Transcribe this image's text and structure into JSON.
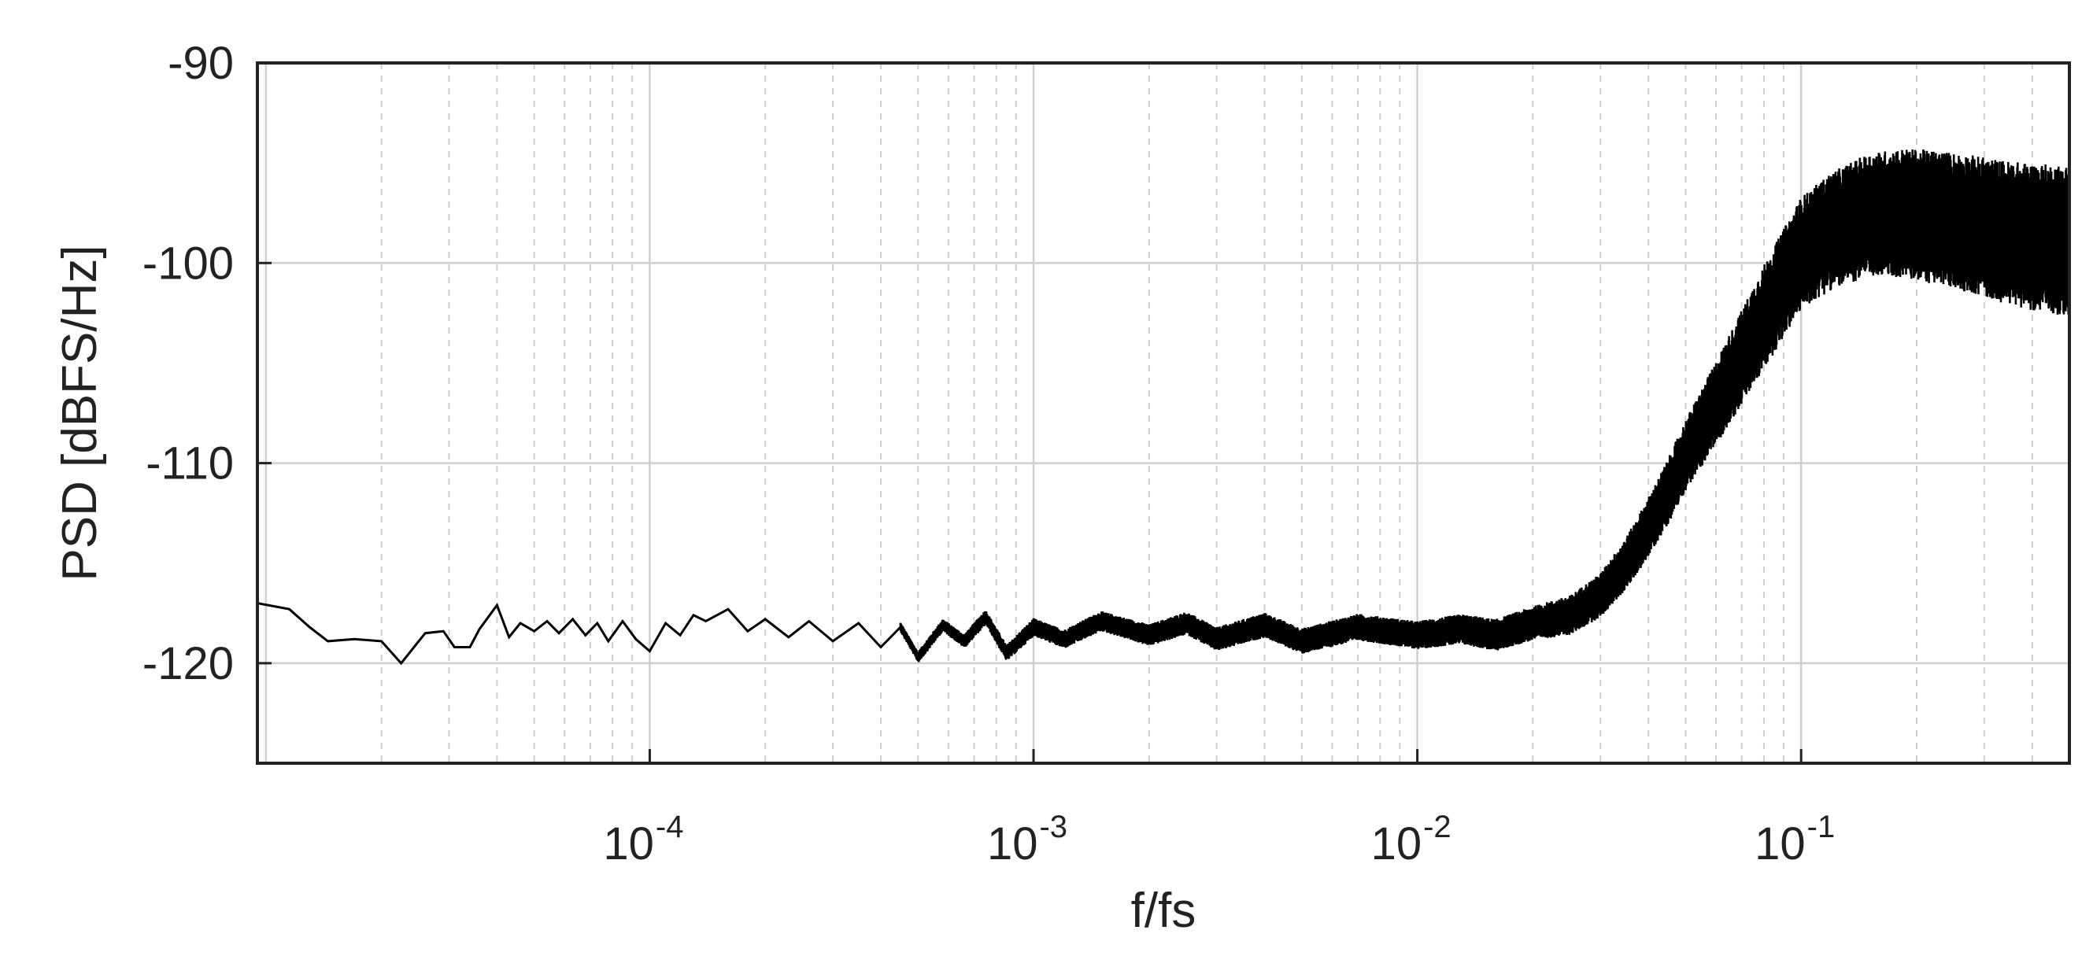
{
  "chart_data": {
    "type": "line",
    "xscale": "log",
    "xlim": [
      9.5e-06,
      0.5
    ],
    "ylim": [
      -125,
      -90
    ],
    "xlabel": "f/fs",
    "ylabel": "PSD [dBFS/Hz]",
    "grid": true,
    "xticks": [
      {
        "mantissa": "10",
        "exponent": "-4",
        "value": 0.0001
      },
      {
        "mantissa": "10",
        "exponent": "-3",
        "value": 0.001
      },
      {
        "mantissa": "10",
        "exponent": "-2",
        "value": 0.01
      },
      {
        "mantissa": "10",
        "exponent": "-1",
        "value": 0.1
      }
    ],
    "yticks": [
      {
        "label": "-90",
        "value": -90
      },
      {
        "label": "-100",
        "value": -100
      },
      {
        "label": "-110",
        "value": -110
      },
      {
        "label": "-120",
        "value": -120
      }
    ],
    "series": [
      {
        "color": "#000000",
        "points": [
          [
            9.5e-06,
            -117.0
          ],
          [
            1.15e-05,
            -117.3
          ],
          [
            1.3e-05,
            -118.2
          ],
          [
            1.45e-05,
            -118.9
          ],
          [
            1.7e-05,
            -118.8
          ],
          [
            2e-05,
            -118.9
          ],
          [
            2.25e-05,
            -120.0
          ],
          [
            2.6e-05,
            -118.5
          ],
          [
            2.9e-05,
            -118.4
          ],
          [
            3.1e-05,
            -119.2
          ],
          [
            3.4e-05,
            -119.2
          ],
          [
            3.6e-05,
            -118.3
          ],
          [
            4e-05,
            -117.1
          ],
          [
            4.3e-05,
            -118.7
          ],
          [
            4.6e-05,
            -118.0
          ],
          [
            5e-05,
            -118.4
          ],
          [
            5.4e-05,
            -117.9
          ],
          [
            5.8e-05,
            -118.5
          ],
          [
            6.3e-05,
            -117.8
          ],
          [
            6.8e-05,
            -118.6
          ],
          [
            7.3e-05,
            -118.0
          ],
          [
            7.8e-05,
            -118.9
          ],
          [
            8.5e-05,
            -117.9
          ],
          [
            9.2e-05,
            -118.8
          ],
          [
            0.0001,
            -119.4
          ],
          [
            0.00011,
            -118.0
          ],
          [
            0.00012,
            -118.6
          ],
          [
            0.00013,
            -117.6
          ],
          [
            0.00014,
            -117.9
          ],
          [
            0.00016,
            -117.3
          ],
          [
            0.00018,
            -118.4
          ],
          [
            0.0002,
            -117.8
          ],
          [
            0.00023,
            -118.7
          ],
          [
            0.00026,
            -117.9
          ],
          [
            0.0003,
            -118.9
          ],
          [
            0.00035,
            -118.0
          ],
          [
            0.0004,
            -119.2
          ],
          [
            0.00045,
            -118.2
          ],
          [
            0.0005,
            -119.7
          ],
          [
            0.00058,
            -118.1
          ],
          [
            0.00066,
            -118.9
          ],
          [
            0.00075,
            -117.7
          ],
          [
            0.00085,
            -119.5
          ],
          [
            0.001,
            -118.2
          ],
          [
            0.0012,
            -118.8
          ],
          [
            0.0015,
            -117.9
          ],
          [
            0.002,
            -118.6
          ],
          [
            0.0025,
            -118.0
          ],
          [
            0.003,
            -118.8
          ],
          [
            0.004,
            -118.1
          ],
          [
            0.005,
            -118.9
          ],
          [
            0.007,
            -118.2
          ],
          [
            0.01,
            -118.6
          ],
          [
            0.013,
            -118.3
          ],
          [
            0.016,
            -118.6
          ],
          [
            0.02,
            -118.0
          ],
          [
            0.025,
            -117.6
          ],
          [
            0.03,
            -116.6
          ],
          [
            0.035,
            -115.0
          ],
          [
            0.04,
            -113.2
          ],
          [
            0.045,
            -111.4
          ],
          [
            0.05,
            -109.6
          ],
          [
            0.06,
            -107.0
          ],
          [
            0.07,
            -104.7
          ],
          [
            0.08,
            -102.7
          ],
          [
            0.09,
            -101.0
          ],
          [
            0.1,
            -99.5
          ],
          [
            0.12,
            -98.4
          ],
          [
            0.15,
            -97.6
          ],
          [
            0.18,
            -97.5
          ],
          [
            0.22,
            -97.7
          ],
          [
            0.27,
            -98.0
          ],
          [
            0.33,
            -98.4
          ],
          [
            0.4,
            -98.7
          ],
          [
            0.5,
            -98.9
          ]
        ],
        "spread": [
          [
            0.00045,
            0.5
          ],
          [
            0.001,
            0.9
          ],
          [
            0.003,
            1.2
          ],
          [
            0.01,
            1.4
          ],
          [
            0.02,
            1.7
          ],
          [
            0.03,
            2.2
          ],
          [
            0.05,
            3.5
          ],
          [
            0.08,
            5.2
          ],
          [
            0.1,
            5.6
          ],
          [
            0.2,
            6.6
          ],
          [
            0.3,
            7.0
          ],
          [
            0.5,
            7.6
          ]
        ]
      }
    ]
  }
}
